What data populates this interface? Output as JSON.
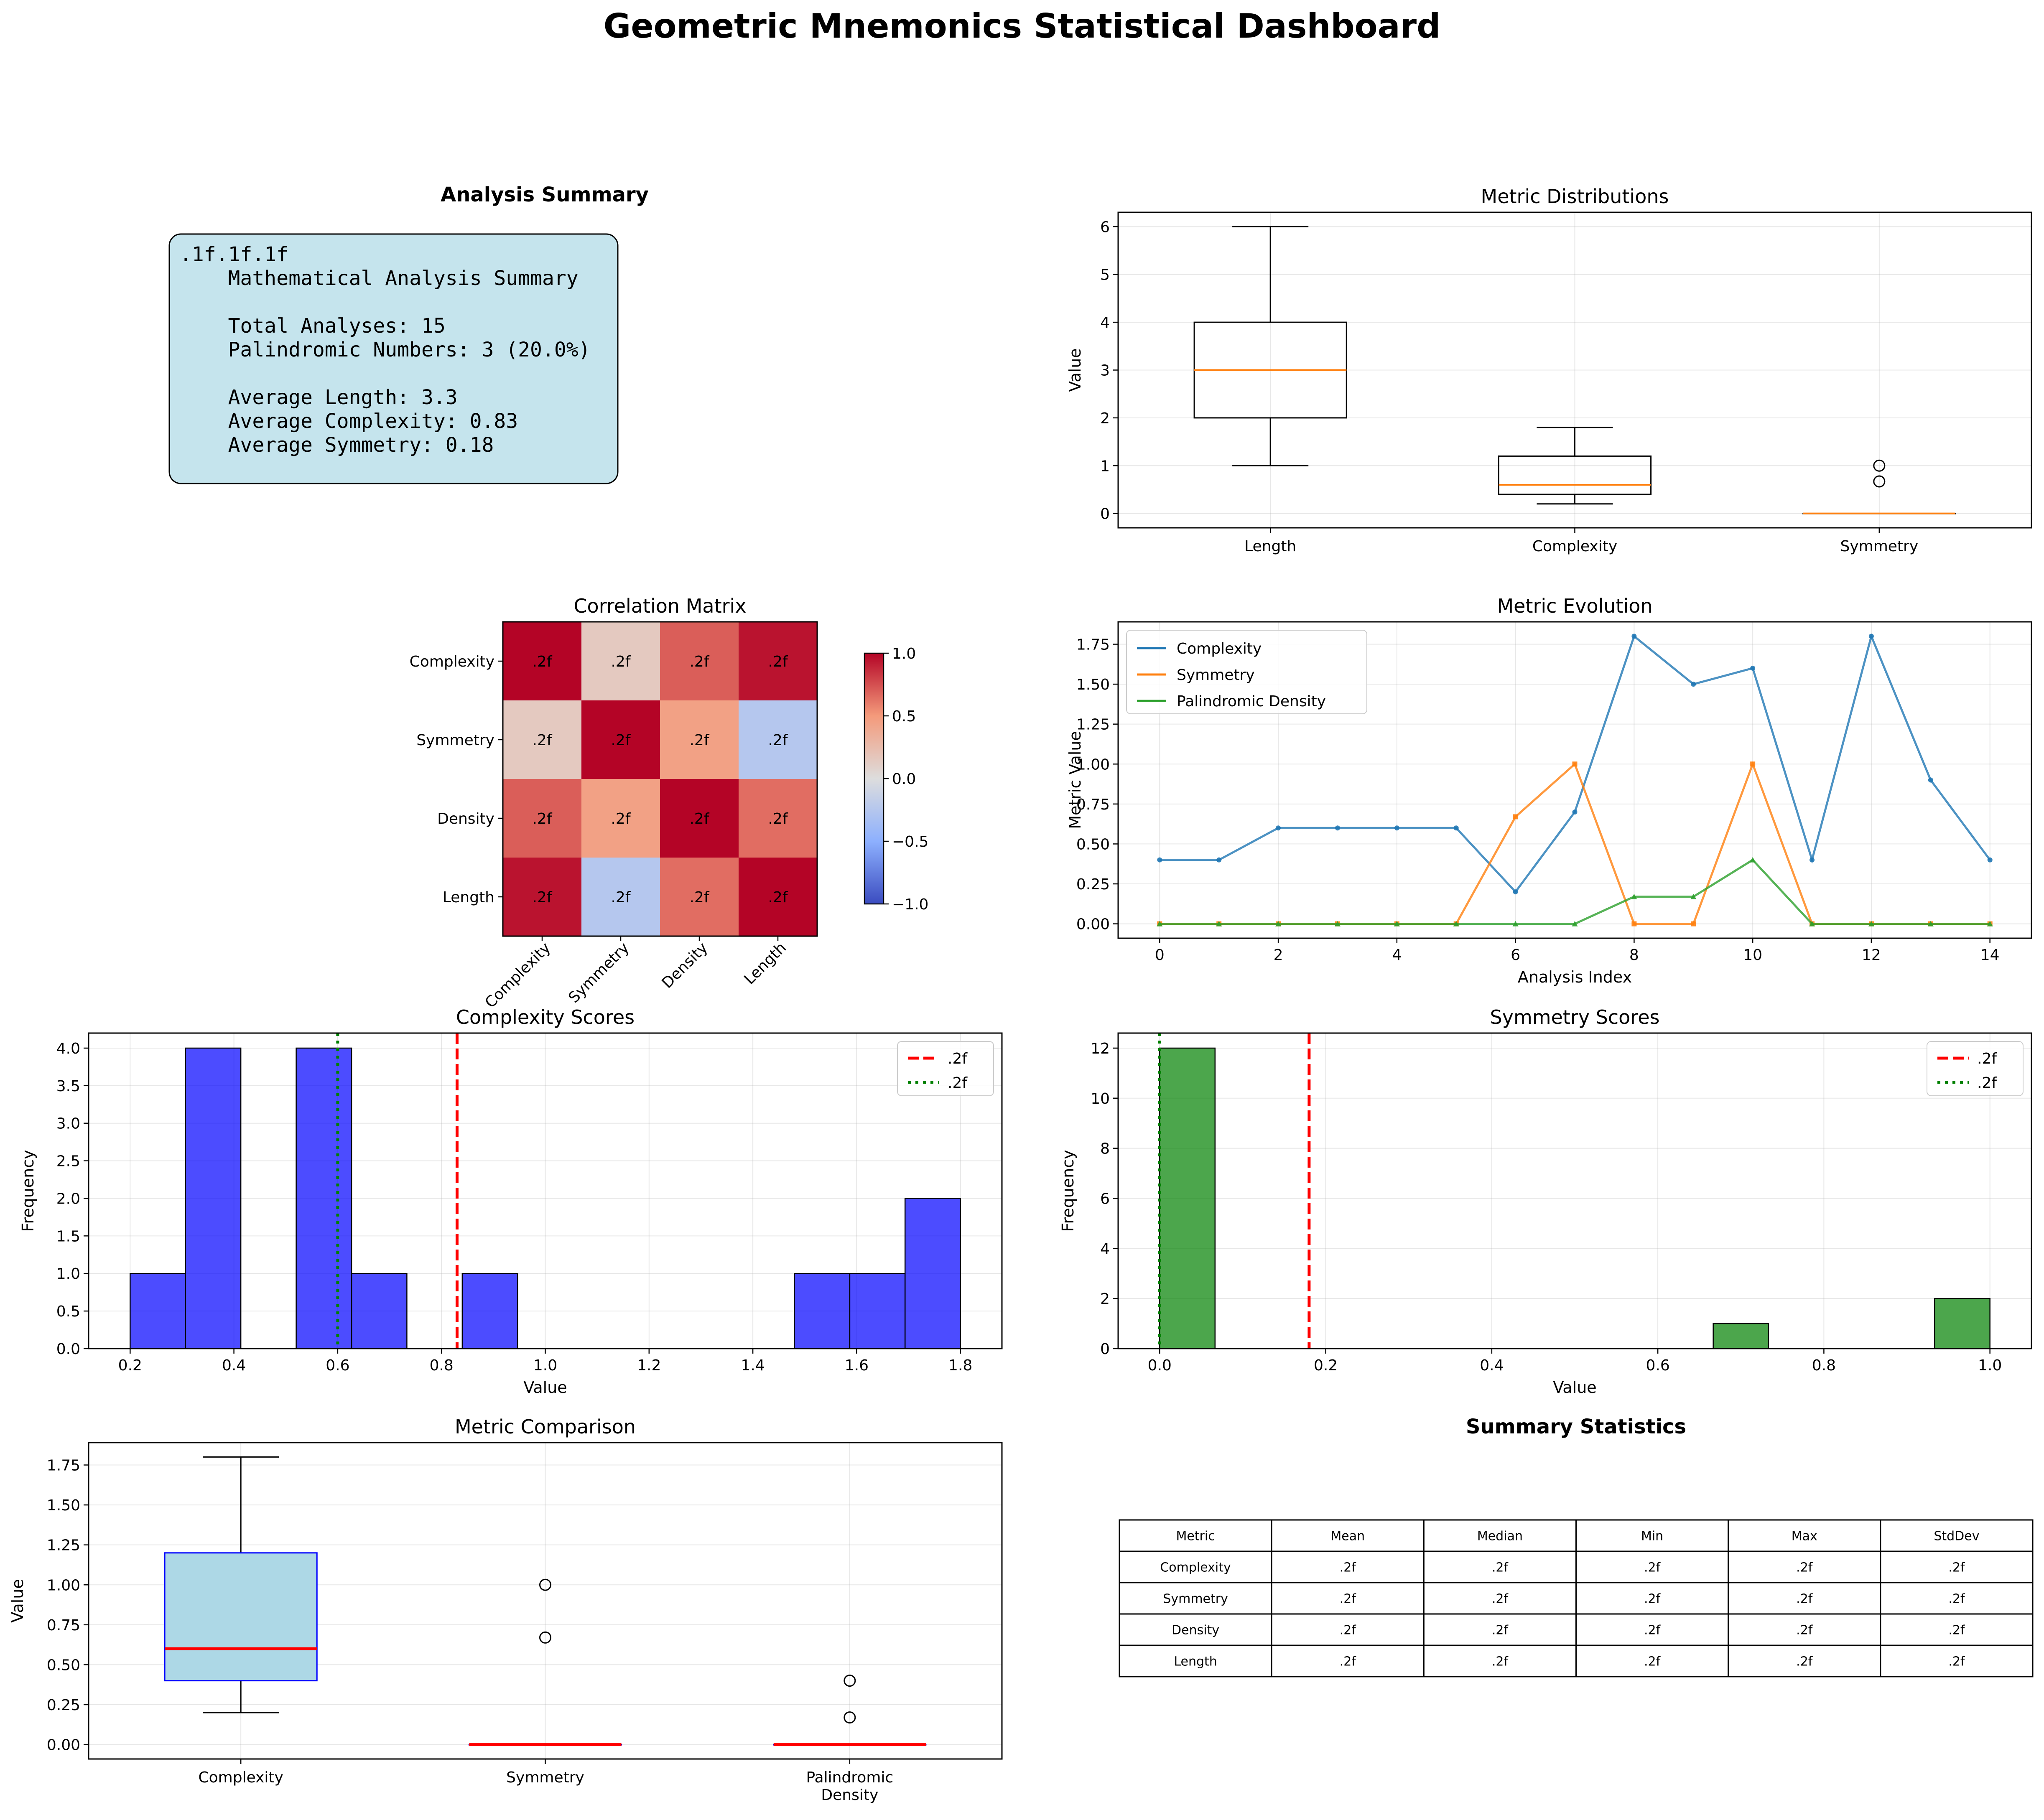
{
  "title": "Geometric Mnemonics Statistical Dashboard",
  "summary_panel": {
    "title": "Analysis Summary",
    "lines": [
      ".1f.1f.1f",
      "    Mathematical Analysis Summary",
      "",
      "    Total Analyses: 15",
      "    Palindromic Numbers: 3 (20.0%)",
      "",
      "    Average Length: 3.3",
      "    Average Complexity: 0.83",
      "    Average Symmetry: 0.18"
    ],
    "box_color": "#add8e6"
  },
  "chart_data": [
    {
      "id": "metric-distributions",
      "type": "box",
      "title": "Metric Distributions",
      "xlabel": "",
      "ylabel": "Value",
      "ylim": [
        -0.3,
        6.3
      ],
      "yticks": [
        0,
        1,
        2,
        3,
        4,
        5,
        6
      ],
      "grid": true,
      "categories": [
        "Length",
        "Complexity",
        "Symmetry"
      ],
      "boxes": [
        {
          "whisker_low": 1,
          "q1": 2,
          "median": 3,
          "q3": 4,
          "whisker_high": 6,
          "outliers": []
        },
        {
          "whisker_low": 0.2,
          "q1": 0.4,
          "median": 0.6,
          "q3": 1.2,
          "whisker_high": 1.8,
          "outliers": []
        },
        {
          "whisker_low": 0,
          "q1": 0,
          "median": 0,
          "q3": 0,
          "whisker_high": 0,
          "outliers": [
            0.67,
            1.0
          ]
        }
      ],
      "median_color": "#ff7f0e"
    },
    {
      "id": "correlation-matrix",
      "type": "heatmap",
      "title": "Correlation Matrix",
      "labels": [
        "Complexity",
        "Symmetry",
        "Density",
        "Length"
      ],
      "values": [
        [
          1.0,
          0.15,
          0.7,
          0.95
        ],
        [
          0.15,
          1.0,
          0.45,
          -0.25
        ],
        [
          0.7,
          0.45,
          1.0,
          0.65
        ],
        [
          0.95,
          -0.25,
          0.65,
          1.0
        ]
      ],
      "cell_text": ".2f",
      "colorbar": {
        "min": -1.0,
        "max": 1.0,
        "ticks": [
          -1.0,
          -0.5,
          0.0,
          0.5,
          1.0
        ],
        "tick_labels": [
          "−1.0",
          "−0.5",
          "0.0",
          "0.5",
          "1.0"
        ]
      },
      "colormap": "coolwarm"
    },
    {
      "id": "metric-evolution",
      "type": "line",
      "title": "Metric Evolution",
      "xlabel": "Analysis Index",
      "ylabel": "Metric Value",
      "xlim": [
        -0.7,
        14.7
      ],
      "ylim": [
        -0.09,
        1.89
      ],
      "xticks": [
        0,
        2,
        4,
        6,
        8,
        10,
        12,
        14
      ],
      "yticks": [
        0.0,
        0.25,
        0.5,
        0.75,
        1.0,
        1.25,
        1.5,
        1.75
      ],
      "ytick_labels": [
        "0.00",
        "0.25",
        "0.50",
        "0.75",
        "1.00",
        "1.25",
        "1.50",
        "1.75"
      ],
      "grid": true,
      "legend": "top-left",
      "x": [
        0,
        1,
        2,
        3,
        4,
        5,
        6,
        7,
        8,
        9,
        10,
        11,
        12,
        13,
        14
      ],
      "series": [
        {
          "name": "Complexity",
          "color": "#1f77b4",
          "values": [
            0.4,
            0.4,
            0.6,
            0.6,
            0.6,
            0.6,
            0.2,
            0.7,
            1.8,
            1.5,
            1.6,
            0.4,
            1.8,
            0.9,
            0.4
          ]
        },
        {
          "name": "Symmetry",
          "color": "#ff7f0e",
          "values": [
            0,
            0,
            0,
            0,
            0,
            0,
            0.67,
            1.0,
            0,
            0,
            1.0,
            0,
            0,
            0,
            0
          ]
        },
        {
          "name": "Palindromic Density",
          "color": "#2ca02c",
          "values": [
            0,
            0,
            0,
            0,
            0,
            0,
            0,
            0,
            0.17,
            0.17,
            0.4,
            0,
            0,
            0,
            0
          ]
        }
      ]
    },
    {
      "id": "complexity-scores",
      "type": "histogram",
      "title": "Complexity Scores",
      "xlabel": "Value",
      "ylabel": "Frequency",
      "xlim": [
        0.12,
        1.88
      ],
      "ylim": [
        0,
        4.2
      ],
      "xticks": [
        0.2,
        0.4,
        0.6,
        0.8,
        1.0,
        1.2,
        1.4,
        1.6,
        1.8
      ],
      "xtick_labels": [
        "0.2",
        "0.4",
        "0.6",
        "0.8",
        "1.0",
        "1.2",
        "1.4",
        "1.6",
        "1.8"
      ],
      "yticks": [
        0,
        0.5,
        1.0,
        1.5,
        2.0,
        2.5,
        3.0,
        3.5,
        4.0
      ],
      "ytick_labels": [
        "0.0",
        "0.5",
        "1.0",
        "1.5",
        "2.0",
        "2.5",
        "3.0",
        "3.5",
        "4.0"
      ],
      "grid": true,
      "bar_color": "#0000ff",
      "bin_edges": [
        0.2,
        0.3067,
        0.4133,
        0.52,
        0.6267,
        0.7333,
        0.84,
        0.9467,
        1.0533,
        1.16,
        1.2667,
        1.3733,
        1.48,
        1.5867,
        1.6933,
        1.8
      ],
      "counts": [
        1,
        4,
        0,
        4,
        1,
        0,
        1,
        0,
        0,
        0,
        0,
        0,
        1,
        1,
        2
      ],
      "mean": 0.83,
      "median": 0.6,
      "legend": "top-right",
      "legend_entries": [
        ".2f",
        ".2f"
      ]
    },
    {
      "id": "symmetry-scores",
      "type": "histogram",
      "title": "Symmetry Scores",
      "xlabel": "Value",
      "ylabel": "Frequency",
      "xlim": [
        -0.05,
        1.05
      ],
      "ylim": [
        0,
        12.6
      ],
      "xticks": [
        0.0,
        0.2,
        0.4,
        0.6,
        0.8,
        1.0
      ],
      "xtick_labels": [
        "0.0",
        "0.2",
        "0.4",
        "0.6",
        "0.8",
        "1.0"
      ],
      "yticks": [
        0,
        2,
        4,
        6,
        8,
        10,
        12
      ],
      "ytick_labels": [
        "0",
        "2",
        "4",
        "6",
        "8",
        "10",
        "12"
      ],
      "grid": true,
      "bar_color": "#008000",
      "bin_edges": [
        0.0,
        0.0667,
        0.1333,
        0.2,
        0.2667,
        0.3333,
        0.4,
        0.4667,
        0.5333,
        0.6,
        0.6667,
        0.7333,
        0.8,
        0.8667,
        0.9333,
        1.0
      ],
      "counts": [
        12,
        0,
        0,
        0,
        0,
        0,
        0,
        0,
        0,
        0,
        1,
        0,
        0,
        0,
        2
      ],
      "mean": 0.18,
      "median": 0.0,
      "legend": "top-right",
      "legend_entries": [
        ".2f",
        ".2f"
      ]
    },
    {
      "id": "metric-comparison",
      "type": "box",
      "title": "Metric Comparison",
      "xlabel": "",
      "ylabel": "Value",
      "ylim": [
        -0.09,
        1.89
      ],
      "yticks": [
        0.0,
        0.25,
        0.5,
        0.75,
        1.0,
        1.25,
        1.5,
        1.75
      ],
      "ytick_labels": [
        "0.00",
        "0.25",
        "0.50",
        "0.75",
        "1.00",
        "1.25",
        "1.50",
        "1.75"
      ],
      "grid": true,
      "categories": [
        "Complexity",
        "Symmetry",
        "Palindromic\nDensity"
      ],
      "boxes": [
        {
          "whisker_low": 0.2,
          "q1": 0.4,
          "median": 0.6,
          "q3": 1.2,
          "whisker_high": 1.8,
          "outliers": []
        },
        {
          "whisker_low": 0,
          "q1": 0,
          "median": 0,
          "q3": 0,
          "whisker_high": 0,
          "outliers": [
            0.67,
            1.0
          ]
        },
        {
          "whisker_low": 0,
          "q1": 0,
          "median": 0,
          "q3": 0,
          "whisker_high": 0,
          "outliers": [
            0.17,
            0.4
          ]
        }
      ],
      "box_fill": "#add8e6",
      "box_edge": "#0000ff",
      "median_color": "#ff0000"
    },
    {
      "id": "summary-statistics",
      "type": "table",
      "title": "Summary Statistics",
      "columns": [
        "Metric",
        "Mean",
        "Median",
        "Min",
        "Max",
        "StdDev"
      ],
      "rows": [
        [
          "Complexity",
          ".2f",
          ".2f",
          ".2f",
          ".2f",
          ".2f"
        ],
        [
          "Symmetry",
          ".2f",
          ".2f",
          ".2f",
          ".2f",
          ".2f"
        ],
        [
          "Density",
          ".2f",
          ".2f",
          ".2f",
          ".2f",
          ".2f"
        ],
        [
          "Length",
          ".2f",
          ".2f",
          ".2f",
          ".2f",
          ".2f"
        ]
      ]
    }
  ]
}
